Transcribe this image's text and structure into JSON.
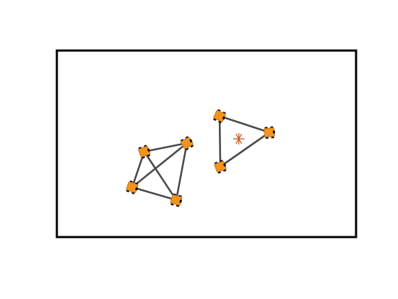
{
  "colors": {
    "background": "#ffffff",
    "frame": "#000000",
    "edge": "#4a4a4a",
    "robot_body": "#f0941f",
    "robot_outline": "#b8690f",
    "robot_wheel": "#111111",
    "target_marker": "#c8561e"
  },
  "marker": {
    "icon": "asterisk-target-icon"
  },
  "formations": [
    {
      "name": "four-robot-formation",
      "robots": 4,
      "edges": [
        [
          0,
          1
        ],
        [
          0,
          2
        ],
        [
          0,
          3
        ],
        [
          1,
          2
        ],
        [
          1,
          3
        ],
        [
          2,
          3
        ]
      ]
    },
    {
      "name": "three-robot-formation",
      "robots": 3,
      "edges": [
        [
          0,
          1
        ],
        [
          1,
          2
        ],
        [
          2,
          0
        ]
      ]
    }
  ]
}
